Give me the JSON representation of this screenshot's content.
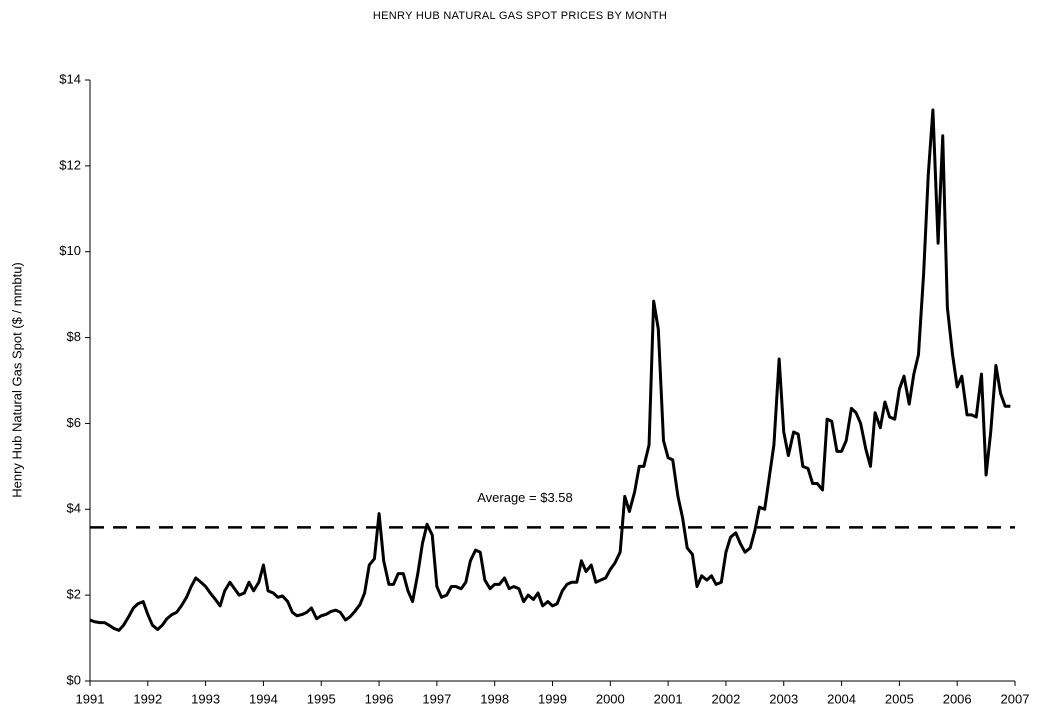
{
  "chart_data": {
    "type": "line",
    "title": "HENRY HUB NATURAL GAS SPOT PRICES BY MONTH",
    "y_label": "Henry Hub Natural Gas Spot ($ / mmbtu)",
    "color": "#000000",
    "xlim": [
      1991,
      2007
    ],
    "xticks": [
      1991,
      1992,
      1993,
      1994,
      1995,
      1996,
      1997,
      1998,
      1999,
      2000,
      2001,
      2002,
      2003,
      2004,
      2005,
      2006,
      2007
    ],
    "ylim": [
      0,
      14
    ],
    "yticks": [
      {
        "value": 0,
        "label": "$0"
      },
      {
        "value": 2,
        "label": "$2"
      },
      {
        "value": 4,
        "label": "$4"
      },
      {
        "value": 6,
        "label": "$6"
      },
      {
        "value": 8,
        "label": "$8"
      },
      {
        "value": 10,
        "label": "$10"
      },
      {
        "value": 12,
        "label": "$12"
      },
      {
        "value": 14,
        "label": "$14"
      }
    ],
    "reference_line": 3.58,
    "annotation": "Average = $3.58",
    "x": [
      1991,
      1991.08,
      1991.17,
      1991.25,
      1991.33,
      1991.42,
      1991.5,
      1991.58,
      1991.67,
      1991.75,
      1991.83,
      1991.92,
      1992,
      1992.08,
      1992.17,
      1992.25,
      1992.33,
      1992.42,
      1992.5,
      1992.58,
      1992.67,
      1992.75,
      1992.83,
      1992.92,
      1993,
      1993.08,
      1993.17,
      1993.25,
      1993.33,
      1993.42,
      1993.5,
      1993.58,
      1993.67,
      1993.75,
      1993.83,
      1993.92,
      1994,
      1994.08,
      1994.17,
      1994.25,
      1994.33,
      1994.42,
      1994.5,
      1994.58,
      1994.67,
      1994.75,
      1994.83,
      1994.92,
      1995,
      1995.08,
      1995.17,
      1995.25,
      1995.33,
      1995.42,
      1995.5,
      1995.58,
      1995.67,
      1995.75,
      1995.83,
      1995.92,
      1996,
      1996.08,
      1996.17,
      1996.25,
      1996.33,
      1996.42,
      1996.5,
      1996.58,
      1996.67,
      1996.75,
      1996.83,
      1996.92,
      1997,
      1997.08,
      1997.17,
      1997.25,
      1997.33,
      1997.42,
      1997.5,
      1997.58,
      1997.67,
      1997.75,
      1997.83,
      1997.92,
      1998,
      1998.08,
      1998.17,
      1998.25,
      1998.33,
      1998.42,
      1998.5,
      1998.58,
      1998.67,
      1998.75,
      1998.83,
      1998.92,
      1999,
      1999.08,
      1999.17,
      1999.25,
      1999.33,
      1999.42,
      1999.5,
      1999.58,
      1999.67,
      1999.75,
      1999.83,
      1999.92,
      2000,
      2000.08,
      2000.17,
      2000.25,
      2000.33,
      2000.42,
      2000.5,
      2000.58,
      2000.67,
      2000.75,
      2000.83,
      2000.92,
      2001,
      2001.08,
      2001.17,
      2001.25,
      2001.33,
      2001.42,
      2001.5,
      2001.58,
      2001.67,
      2001.75,
      2001.83,
      2001.92,
      2002,
      2002.08,
      2002.17,
      2002.25,
      2002.33,
      2002.42,
      2002.5,
      2002.58,
      2002.67,
      2002.75,
      2002.83,
      2002.92,
      2003,
      2003.08,
      2003.17,
      2003.25,
      2003.33,
      2003.42,
      2003.5,
      2003.58,
      2003.67,
      2003.75,
      2003.83,
      2003.92,
      2004,
      2004.08,
      2004.17,
      2004.25,
      2004.33,
      2004.42,
      2004.5,
      2004.58,
      2004.67,
      2004.75,
      2004.83,
      2004.92,
      2005,
      2005.08,
      2005.17,
      2005.25,
      2005.33,
      2005.42,
      2005.5,
      2005.58,
      2005.67,
      2005.75,
      2005.83,
      2005.92,
      2006,
      2006.08,
      2006.17,
      2006.25,
      2006.33,
      2006.42,
      2006.5,
      2006.58,
      2006.67,
      2006.75,
      2006.83,
      2006.92
    ],
    "values": [
      1.42,
      1.38,
      1.36,
      1.36,
      1.3,
      1.22,
      1.18,
      1.3,
      1.5,
      1.7,
      1.8,
      1.85,
      1.55,
      1.3,
      1.2,
      1.3,
      1.45,
      1.55,
      1.6,
      1.75,
      1.95,
      2.2,
      2.4,
      2.3,
      2.2,
      2.05,
      1.9,
      1.75,
      2.1,
      2.3,
      2.15,
      2.0,
      2.05,
      2.3,
      2.1,
      2.3,
      2.7,
      2.1,
      2.05,
      1.95,
      1.98,
      1.85,
      1.6,
      1.52,
      1.55,
      1.6,
      1.7,
      1.45,
      1.52,
      1.55,
      1.62,
      1.65,
      1.6,
      1.42,
      1.5,
      1.62,
      1.78,
      2.05,
      2.7,
      2.85,
      3.9,
      2.8,
      2.25,
      2.25,
      2.5,
      2.5,
      2.1,
      1.85,
      2.5,
      3.2,
      3.65,
      3.4,
      2.2,
      1.95,
      2.0,
      2.2,
      2.2,
      2.15,
      2.3,
      2.8,
      3.05,
      3.0,
      2.35,
      2.15,
      2.25,
      2.25,
      2.4,
      2.15,
      2.2,
      2.15,
      1.85,
      2.0,
      1.9,
      2.05,
      1.75,
      1.85,
      1.75,
      1.8,
      2.1,
      2.25,
      2.3,
      2.3,
      2.8,
      2.55,
      2.7,
      2.3,
      2.35,
      2.4,
      2.6,
      2.75,
      3.0,
      4.3,
      3.95,
      4.4,
      5.0,
      5.0,
      5.5,
      8.85,
      8.2,
      5.6,
      5.2,
      5.15,
      4.3,
      3.8,
      3.1,
      2.95,
      2.2,
      2.45,
      2.35,
      2.45,
      2.25,
      2.3,
      3.0,
      3.35,
      3.45,
      3.2,
      3.0,
      3.1,
      3.5,
      4.05,
      4.0,
      4.75,
      5.5,
      7.5,
      5.8,
      5.25,
      5.8,
      5.75,
      5.0,
      4.95,
      4.6,
      4.6,
      4.45,
      6.1,
      6.05,
      5.35,
      5.35,
      5.6,
      6.35,
      6.25,
      6.0,
      5.4,
      5.0,
      6.25,
      5.9,
      6.5,
      6.15,
      6.1,
      6.8,
      7.1,
      6.45,
      7.15,
      7.6,
      9.5,
      11.8,
      13.3,
      10.2,
      12.7,
      8.7,
      7.6,
      6.85,
      7.1,
      6.2,
      6.2,
      6.15,
      7.15,
      4.8,
      5.8,
      7.35,
      6.7,
      6.4,
      6.4
    ]
  }
}
